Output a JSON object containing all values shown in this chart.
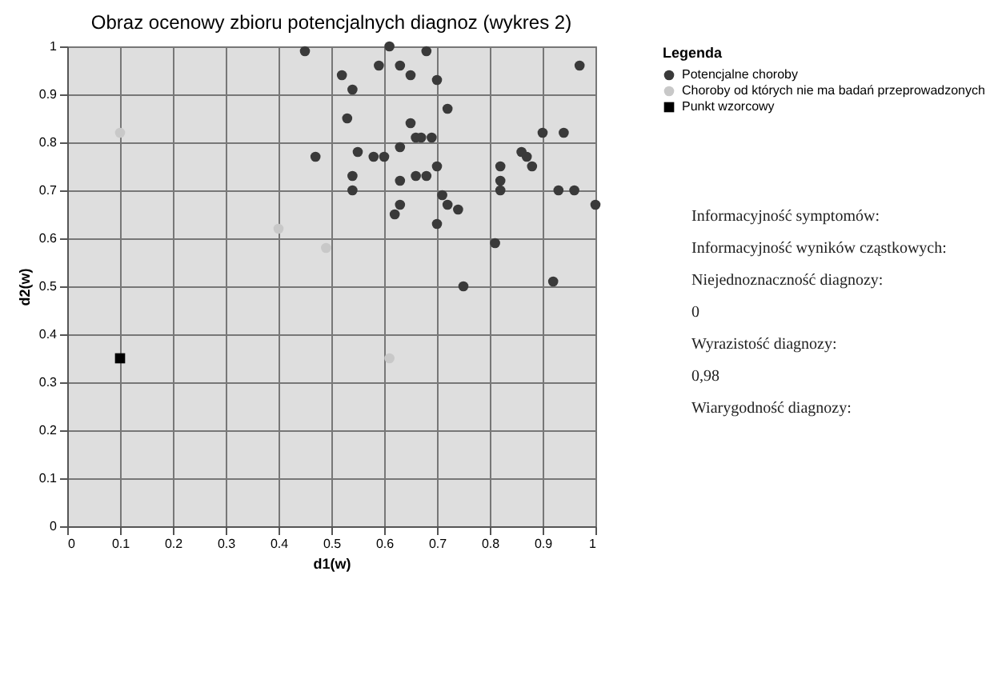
{
  "chart_data": {
    "type": "scatter",
    "title": "Obraz ocenowy zbioru potencjalnych diagnoz (wykres 2)",
    "xlabel": "d1(w)",
    "ylabel": "d2(w)",
    "legend_title": "Legenda",
    "legend": "top right",
    "grid": true,
    "xlim": [
      0,
      1
    ],
    "xticks": [
      0,
      0.1,
      0.2,
      0.3,
      0.4,
      0.5,
      0.6,
      0.7,
      0.8,
      0.9,
      1
    ],
    "ylim": [
      0,
      1
    ],
    "yticks": [
      0,
      0.1,
      0.2,
      0.3,
      0.4,
      0.5,
      0.6,
      0.7,
      0.8,
      0.9,
      1
    ],
    "series": [
      {
        "name": "Potencjalne choroby",
        "color": "#3a3a3a",
        "marker": "circle",
        "x": [
          0.45,
          0.61,
          0.68,
          0.97,
          0.52,
          0.59,
          0.63,
          0.65,
          0.7,
          0.54,
          0.72,
          0.53,
          0.65,
          0.66,
          0.67,
          0.69,
          0.63,
          0.9,
          0.94,
          0.47,
          0.55,
          0.58,
          0.6,
          0.86,
          0.87,
          0.7,
          0.82,
          0.88,
          0.54,
          0.66,
          0.68,
          0.82,
          0.63,
          0.54,
          0.71,
          0.82,
          0.93,
          0.96,
          0.63,
          0.62,
          0.72,
          0.74,
          1.0,
          0.7,
          0.81,
          0.92,
          0.75
        ],
        "values": [
          0.99,
          1.0,
          0.99,
          0.96,
          0.94,
          0.96,
          0.96,
          0.94,
          0.93,
          0.91,
          0.87,
          0.85,
          0.84,
          0.81,
          0.81,
          0.81,
          0.79,
          0.82,
          0.82,
          0.77,
          0.78,
          0.77,
          0.77,
          0.78,
          0.77,
          0.75,
          0.75,
          0.75,
          0.73,
          0.73,
          0.73,
          0.72,
          0.72,
          0.7,
          0.69,
          0.7,
          0.7,
          0.7,
          0.67,
          0.65,
          0.67,
          0.66,
          0.67,
          0.63,
          0.59,
          0.51,
          0.5
        ]
      },
      {
        "name": "Choroby od których nie ma badań przeprowadzonych",
        "color": "#c8c8c8",
        "marker": "circle",
        "x": [
          0.1,
          0.4,
          0.49,
          0.61
        ],
        "values": [
          0.82,
          0.62,
          0.58,
          0.35
        ]
      },
      {
        "name": "Punkt wzorcowy",
        "color": "#000000",
        "marker": "square",
        "x": [
          0.1
        ],
        "values": [
          0.35
        ]
      }
    ],
    "annotations": [
      "Informacyjność symptomów:",
      "Informacyjność wyników cząstkowych:",
      "Niejednoznaczność diagnozy:",
      "0",
      "Wyrazistość diagnozy:",
      "0,98",
      "Wiarygodność diagnozy:"
    ]
  }
}
